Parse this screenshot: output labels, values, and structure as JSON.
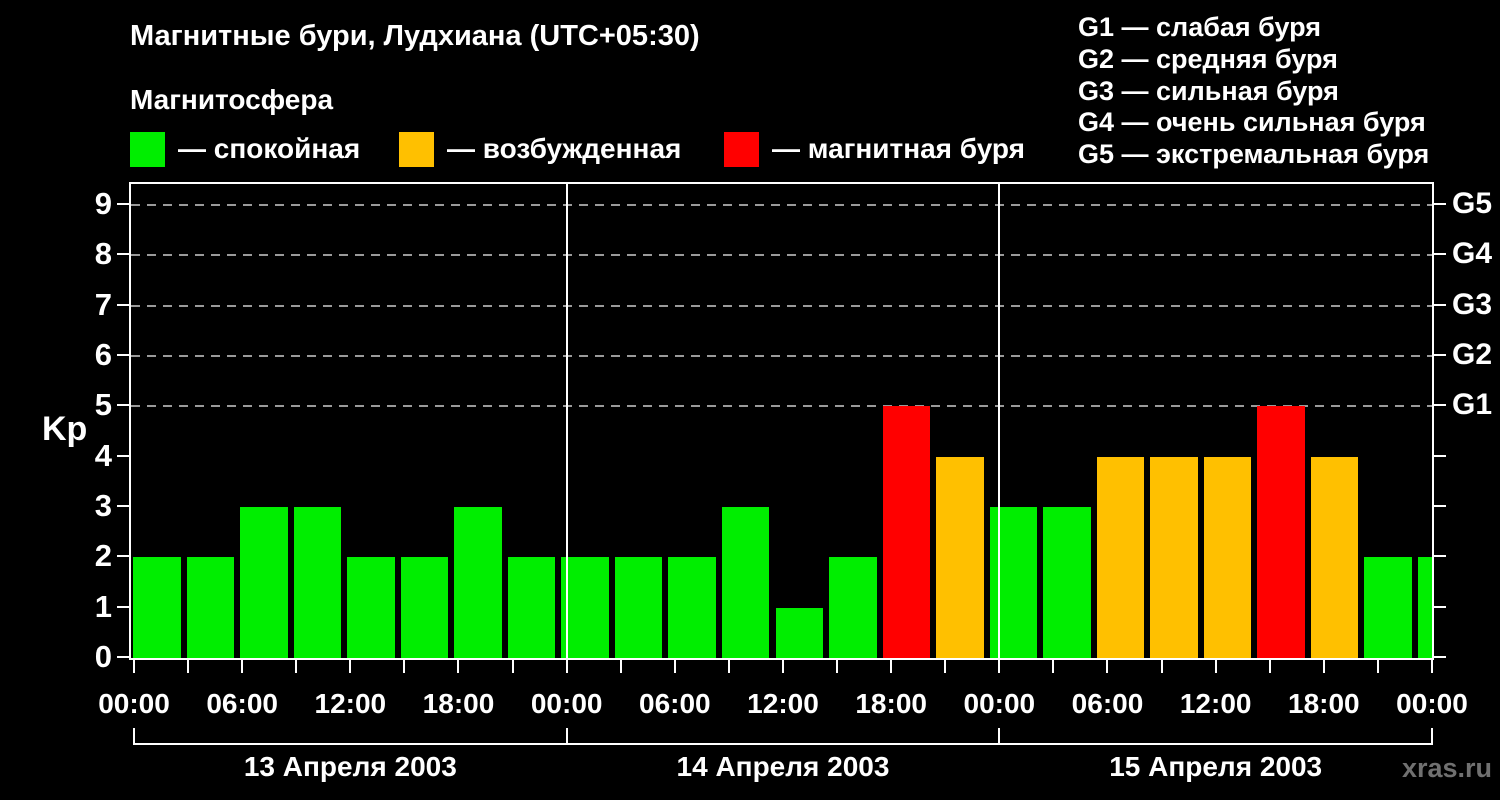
{
  "header": {
    "title": "Магнитные бури, Лудхиана (UTC+05:30)",
    "subtitle": "Магнитосфера",
    "legend": [
      {
        "key": "quiet",
        "color": "#00ee00",
        "label": "— спокойная"
      },
      {
        "key": "excited",
        "color": "#ffc000",
        "label": "— возбужденная"
      },
      {
        "key": "storm",
        "color": "#ff0000",
        "label": "— магнитная буря"
      }
    ],
    "g_scale_legend": [
      "G1 — слабая буря",
      "G2 — средняя буря",
      "G3 — сильная буря",
      "G4 — очень сильная буря",
      "G5 — экстремальная буря"
    ]
  },
  "watermark": "xras.ru",
  "chart_data": {
    "type": "bar",
    "title": "Магнитные бури, Лудхиана (UTC+05:30)",
    "xlabel": "",
    "ylabel": "Kp",
    "ylim": [
      0,
      9.4
    ],
    "y_ticks": [
      0,
      1,
      2,
      3,
      4,
      5,
      6,
      7,
      8,
      9
    ],
    "gridlines_at_kp": [
      5,
      6,
      7,
      8,
      9
    ],
    "grid_style": "dashed-gray-horizontal",
    "right_axis_labels": [
      {
        "label": "G1",
        "kp": 5
      },
      {
        "label": "G2",
        "kp": 6
      },
      {
        "label": "G3",
        "kp": 7
      },
      {
        "label": "G4",
        "kp": 8
      },
      {
        "label": "G5",
        "kp": 9
      }
    ],
    "interval_hours": 3,
    "x_tick_step_hours": 3,
    "x_label_cycle": [
      "00:00",
      "06:00",
      "12:00",
      "18:00"
    ],
    "final_x_label": "00:00",
    "days": [
      {
        "date": "13 Апреля 2003",
        "kp_values": [
          2,
          2,
          3,
          3,
          2,
          2,
          3,
          2
        ]
      },
      {
        "date": "14 Апреля 2003",
        "kp_values": [
          2,
          2,
          2,
          3,
          1,
          2,
          5,
          4
        ]
      },
      {
        "date": "15 Апреля 2003",
        "kp_values": [
          3,
          3,
          4,
          4,
          4,
          5,
          4,
          2
        ]
      }
    ],
    "next_day_partial_kp": 2,
    "bar_colors": {
      "quiet": "#00ee00",
      "excited": "#ffc000",
      "storm": "#ff0000"
    },
    "color_rules": {
      "excited_min_kp": 4,
      "storm_min_kp": 5
    },
    "legend_position": "top-left",
    "background": "#000000"
  }
}
